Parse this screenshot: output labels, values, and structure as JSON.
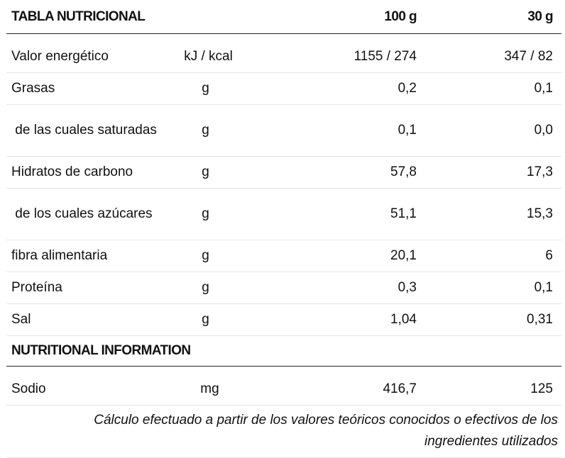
{
  "header": {
    "title": "TABLA NUTRICIONAL",
    "col_100": "100 g",
    "col_30": "30 g"
  },
  "rows": [
    {
      "label": "Valor energético",
      "unit": "kJ / kcal",
      "v100": "1155 / 274",
      "v30": "347 / 82"
    },
    {
      "label": "Grasas",
      "unit": "g",
      "v100": "0,2",
      "v30": "0,1"
    },
    {
      "label": " de las cuales saturadas",
      "unit": "g",
      "v100": "0,1",
      "v30": "0,0"
    },
    {
      "label": "Hidratos de carbono",
      "unit": "g",
      "v100": "57,8",
      "v30": "17,3"
    },
    {
      "label": " de los cuales azúcares",
      "unit": "g",
      "v100": "51,1",
      "v30": "15,3"
    },
    {
      "label": "fibra alimentaria",
      "unit": "g",
      "v100": "20,1",
      "v30": "6"
    },
    {
      "label": "Proteína",
      "unit": "g",
      "v100": "0,3",
      "v30": "0,1"
    },
    {
      "label": "Sal",
      "unit": "g",
      "v100": "1,04",
      "v30": "0,31"
    }
  ],
  "section": {
    "title": "NUTRITIONAL INFORMATION"
  },
  "extra_rows": [
    {
      "label": "Sodio",
      "unit": "mg",
      "v100": "416,7",
      "v30": "125"
    }
  ],
  "note": "Cálculo efectuado a partir de los valores teóricos conocidos o efectivos de los ingredientes utilizados"
}
